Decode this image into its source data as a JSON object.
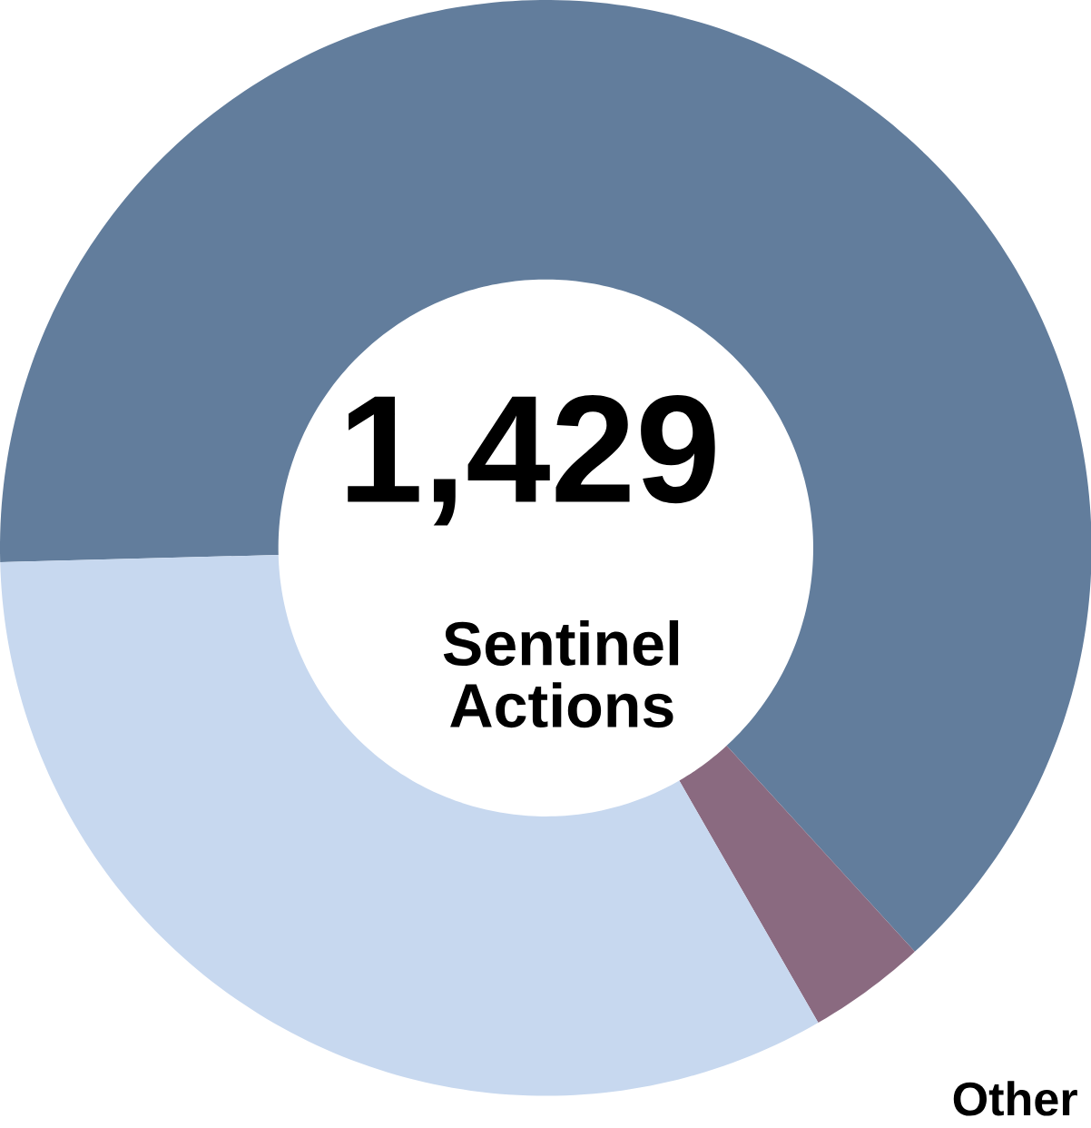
{
  "chart_data": {
    "type": "donut",
    "categories": [
      null,
      "Other",
      null
    ],
    "values": [
      63.6,
      3.5,
      32.9
    ],
    "colors": [
      "#627d9c",
      "#8a6a80",
      "#c7d8ef"
    ],
    "annotations": [
      "1,429",
      "Sentinel Actions"
    ]
  }
}
